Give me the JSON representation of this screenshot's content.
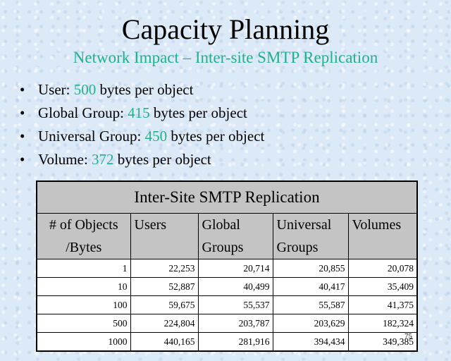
{
  "slide": {
    "title": "Capacity Planning",
    "subtitle": "Network Impact – Inter-site SMTP Replication",
    "bullet_glyph": "•",
    "bullets": [
      {
        "label": "User: ",
        "value": "500",
        "suffix": " bytes per object"
      },
      {
        "label": "Global Group: ",
        "value": "415",
        "suffix": " bytes per object"
      },
      {
        "label": "Universal Group: ",
        "value": "450",
        "suffix": " bytes per object"
      },
      {
        "label": "Volume: ",
        "value": "372",
        "suffix": " bytes per object"
      }
    ],
    "page_number": "75"
  },
  "table": {
    "caption": "Inter-Site SMTP Replication",
    "headers": [
      {
        "line1": "# of Objects",
        "line2": "/Bytes"
      },
      {
        "line1": "Users",
        "line2": ""
      },
      {
        "line1": "Global",
        "line2": "Groups"
      },
      {
        "line1": "Universal",
        "line2": "Groups"
      },
      {
        "line1": "Volumes",
        "line2": ""
      }
    ],
    "rows": [
      [
        "1",
        "22,253",
        "20,714",
        "20,855",
        "20,078"
      ],
      [
        "10",
        "52,887",
        "40,499",
        "40,417",
        "35,409"
      ],
      [
        "100",
        "59,675",
        "55,537",
        "55,587",
        "41,375"
      ],
      [
        "500",
        "224,804",
        "203,787",
        "203,629",
        "182,324"
      ],
      [
        "1000",
        "440,165",
        "281,916",
        "394,434",
        "349,385"
      ]
    ]
  },
  "colors": {
    "accent": "#21b08c",
    "header_fill": "#c4c4c4",
    "background": "#dce9f7"
  }
}
